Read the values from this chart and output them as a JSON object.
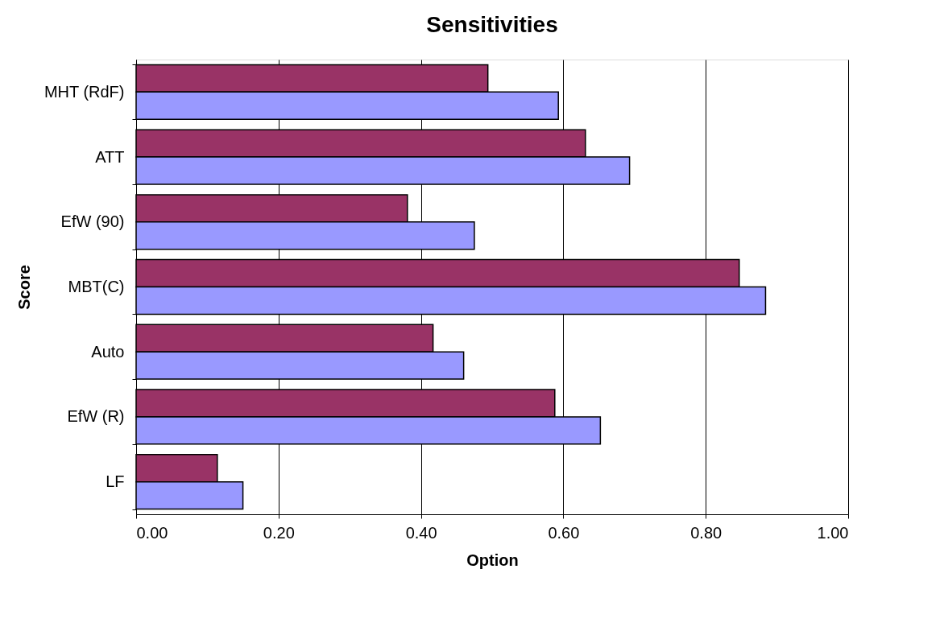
{
  "chart_data": {
    "type": "bar",
    "orientation": "horizontal",
    "title": "Sensitivities",
    "xlabel": "Option",
    "ylabel": "Score",
    "categories": [
      "MHT (RdF)",
      "ATT",
      "EfW (90)",
      "MBT(C)",
      "Auto",
      "EfW (R)",
      "LF"
    ],
    "series": [
      {
        "color": "#993366",
        "values": [
          0.494,
          0.631,
          0.381,
          0.847,
          0.417,
          0.588,
          0.114
        ]
      },
      {
        "color": "#9999ff",
        "values": [
          0.593,
          0.693,
          0.475,
          0.884,
          0.46,
          0.652,
          0.15
        ]
      }
    ],
    "xlim": [
      0,
      1
    ],
    "xticks": [
      {
        "value": 0,
        "label": "0.00"
      },
      {
        "value": 0.2,
        "label": "0.20"
      },
      {
        "value": 0.4,
        "label": "0.40"
      },
      {
        "value": 0.6,
        "label": "0.60"
      },
      {
        "value": 0.8,
        "label": "0.80"
      },
      {
        "value": 1,
        "label": "1.00"
      }
    ],
    "grid": "x",
    "legend": false
  }
}
